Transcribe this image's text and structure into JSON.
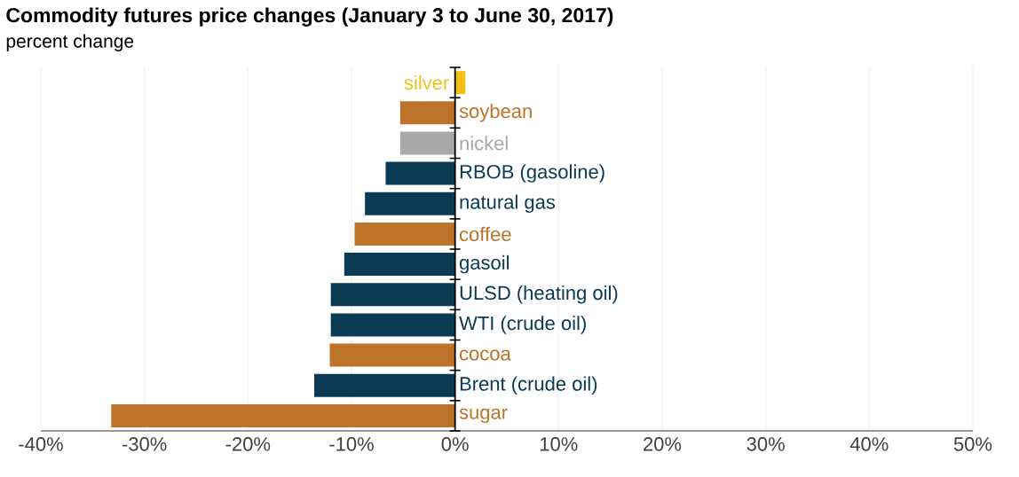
{
  "chart_data": {
    "type": "bar",
    "orientation": "horizontal",
    "title": "Commodity futures price changes (January 3 to June 30, 2017)",
    "subtitle": "percent change",
    "categories": [
      "silver",
      "soybean",
      "nickel",
      "RBOB (gasoline)",
      "natural gas",
      "coffee",
      "gasoil",
      "ULSD (heating oil)",
      "WTI (crude oil)",
      "cocoa",
      "Brent (crude oil)",
      "sugar"
    ],
    "values": [
      1.0,
      -5.3,
      -5.3,
      -6.7,
      -8.7,
      -9.7,
      -10.7,
      -12.0,
      -12.0,
      -12.1,
      -13.6,
      -33.2
    ],
    "colors": [
      "#f2c019",
      "#bd732a",
      "#a9a9a9",
      "#0b3b54",
      "#0b3b54",
      "#bd732a",
      "#0b3b54",
      "#0b3b54",
      "#0b3b54",
      "#bd732a",
      "#0b3b54",
      "#bd732a"
    ],
    "xlim": [
      -40,
      50
    ],
    "xticks": [
      {
        "value": -40,
        "label": "-40%"
      },
      {
        "value": -30,
        "label": "-30%"
      },
      {
        "value": -20,
        "label": "-20%"
      },
      {
        "value": -10,
        "label": "-10%"
      },
      {
        "value": 0,
        "label": "0%"
      },
      {
        "value": 10,
        "label": "10%"
      },
      {
        "value": 20,
        "label": "20%"
      },
      {
        "value": 30,
        "label": "30%"
      },
      {
        "value": 40,
        "label": "40%"
      },
      {
        "value": 50,
        "label": "50%"
      }
    ],
    "grid": "x"
  }
}
